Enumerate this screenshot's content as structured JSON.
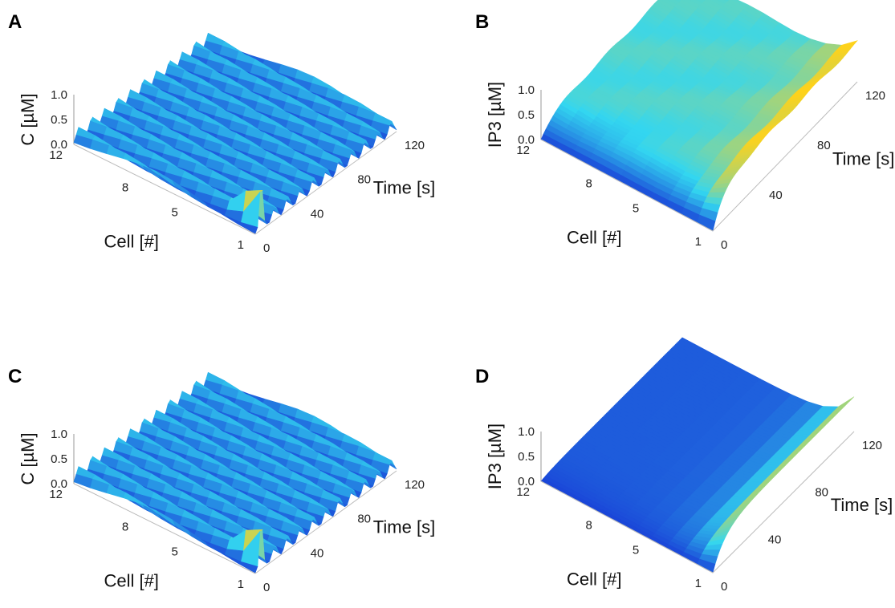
{
  "figure": {
    "panels": [
      {
        "letter": "A",
        "zlabel": "C [µM]",
        "xlabel": "Cell [#]",
        "ylabel": "Time [s]"
      },
      {
        "letter": "B",
        "zlabel": "IP3 [µM]",
        "xlabel": "Cell [#]",
        "ylabel": "Time [s]"
      },
      {
        "letter": "C",
        "zlabel": "C [µM]",
        "xlabel": "Cell [#]",
        "ylabel": "Time [s]"
      },
      {
        "letter": "D",
        "zlabel": "IP3 [µM]",
        "xlabel": "Cell [#]",
        "ylabel": "Time [s]"
      }
    ],
    "cell_ticks": [
      "1",
      "5",
      "8",
      "12"
    ],
    "time_ticks": [
      "0",
      "40",
      "80",
      "120"
    ],
    "z_ticks": [
      "0.0",
      "0.5",
      "1.0"
    ]
  },
  "colors": {
    "low": "#1a44d8",
    "mid": "#33d6f0",
    "high": "#ffd21a",
    "peak": "#d42a0a"
  },
  "chart_data": [
    {
      "type": "surface",
      "panel": "A",
      "variable": "C",
      "x_axis": "Cell [#]",
      "xlim": [
        1,
        12
      ],
      "x_ticks": [
        1,
        5,
        8,
        12
      ],
      "y_axis": "Time [s]",
      "ylim": [
        0,
        120
      ],
      "y_ticks": [
        0,
        40,
        80,
        120
      ],
      "z_axis": "C [µM]",
      "zlim": [
        0,
        1
      ],
      "z_ticks": [
        0,
        0.5,
        1.0
      ],
      "pattern": "oscillation",
      "period_s": 11,
      "spike_peak": 0.28,
      "initial_peak_cell_1": 1.0
    },
    {
      "type": "surface",
      "panel": "B",
      "variable": "IP3",
      "x_axis": "Cell [#]",
      "xlim": [
        1,
        12
      ],
      "x_ticks": [
        1,
        5,
        8,
        12
      ],
      "y_axis": "Time [s]",
      "ylim": [
        0,
        120
      ],
      "y_ticks": [
        0,
        40,
        80,
        120
      ],
      "z_axis": "IP3 [µM]",
      "zlim": [
        0,
        1
      ],
      "z_ticks": [
        0,
        0.5,
        1.0
      ],
      "pattern": "gradient",
      "source_cell_level": 0.8,
      "far_cell_level": 0.35
    },
    {
      "type": "surface",
      "panel": "C",
      "variable": "C",
      "x_axis": "Cell [#]",
      "xlim": [
        1,
        12
      ],
      "x_ticks": [
        1,
        5,
        8,
        12
      ],
      "y_axis": "Time [s]",
      "ylim": [
        0,
        120
      ],
      "y_ticks": [
        0,
        40,
        80,
        120
      ],
      "z_axis": "C [µM]",
      "zlim": [
        0,
        1
      ],
      "z_ticks": [
        0,
        0.5,
        1.0
      ],
      "pattern": "oscillation",
      "period_s": 11,
      "spike_peak": 0.28,
      "initial_peak_cell_1": 1.0
    },
    {
      "type": "surface",
      "panel": "D",
      "variable": "IP3",
      "x_axis": "Cell [#]",
      "xlim": [
        1,
        12
      ],
      "x_ticks": [
        1,
        5,
        8,
        12
      ],
      "y_axis": "Time [s]",
      "ylim": [
        0,
        120
      ],
      "y_ticks": [
        0,
        40,
        80,
        120
      ],
      "z_axis": "IP3 [µM]",
      "zlim": [
        0,
        1
      ],
      "z_ticks": [
        0,
        0.5,
        1.0
      ],
      "pattern": "gradient",
      "source_cell_level": 0.7,
      "far_cell_level": 0.05
    }
  ]
}
